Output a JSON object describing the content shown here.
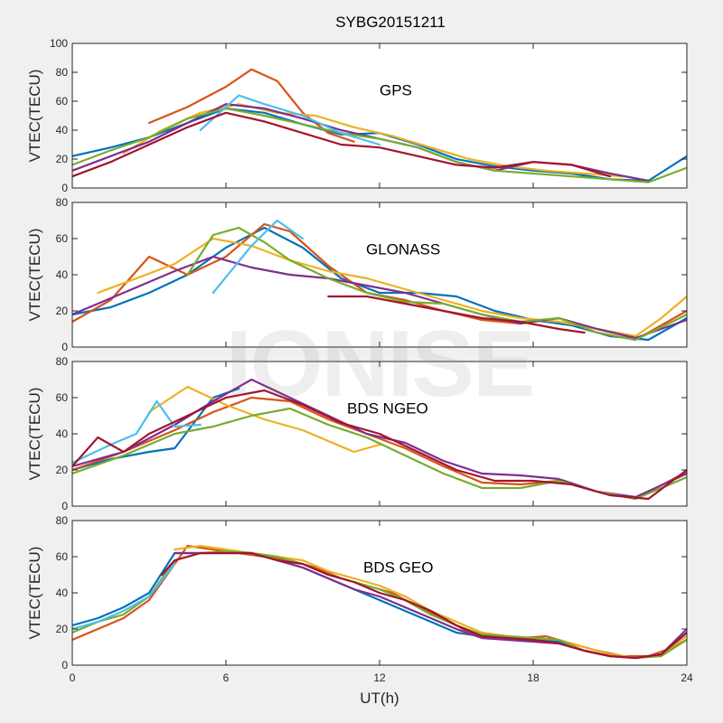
{
  "title": "SYBG20151211",
  "watermark": "IONISE",
  "colors": {
    "background": "#f0f0f0",
    "axes_face": "#ffffff",
    "series_palette": [
      "#0072BD",
      "#D95319",
      "#EDB120",
      "#7E2F8E",
      "#77AC30",
      "#4DBEEE",
      "#A2142F"
    ]
  },
  "chart_data": [
    {
      "type": "line",
      "annotation": "GPS",
      "ylabel": "VTEC(TECU)",
      "xlabel": "",
      "xlim": [
        0,
        24
      ],
      "ylim": [
        0,
        100
      ],
      "yticks": [
        0,
        20,
        40,
        60,
        80,
        100
      ],
      "xticks": [
        0,
        6,
        12,
        18,
        24
      ],
      "show_xtick_labels": false,
      "grid": false,
      "series": [
        {
          "color": "#0072BD",
          "x": [
            0,
            1.5,
            3,
            4.5,
            6,
            7.5,
            9,
            10.5,
            12,
            13.5,
            15,
            16.5,
            18,
            19.5,
            21,
            22.5,
            24
          ],
          "values": [
            22,
            28,
            35,
            45,
            55,
            52,
            44,
            37,
            38,
            30,
            20,
            15,
            12,
            10,
            6,
            5,
            22
          ]
        },
        {
          "color": "#D95319",
          "x": [
            3,
            4.5,
            6,
            7,
            8,
            9,
            10,
            11
          ],
          "values": [
            45,
            56,
            70,
            82,
            74,
            52,
            38,
            32
          ]
        },
        {
          "color": "#EDB120",
          "x": [
            2,
            3.5,
            5,
            6.5,
            8,
            9.5,
            11,
            12.5,
            14,
            15.5,
            17,
            18.5,
            20,
            21.5
          ],
          "values": [
            24,
            40,
            52,
            58,
            52,
            50,
            42,
            36,
            28,
            20,
            15,
            12,
            10,
            8
          ]
        },
        {
          "color": "#7E2F8E",
          "x": [
            0,
            1.5,
            3,
            4.5,
            6,
            7.5,
            9,
            10.5,
            12,
            13.5,
            15,
            16.5,
            18,
            19.5,
            21,
            22.5
          ],
          "values": [
            12,
            22,
            32,
            45,
            58,
            55,
            48,
            40,
            34,
            28,
            18,
            12,
            18,
            16,
            10,
            5
          ]
        },
        {
          "color": "#77AC30",
          "x": [
            0,
            1.5,
            3,
            4.5,
            6,
            7.5,
            9,
            10.5,
            12,
            13.5,
            15,
            16.5,
            18,
            19.5,
            21,
            22.5,
            24
          ],
          "values": [
            16,
            26,
            35,
            48,
            55,
            50,
            44,
            38,
            34,
            28,
            18,
            12,
            10,
            8,
            6,
            4,
            14
          ]
        },
        {
          "color": "#4DBEEE",
          "x": [
            5,
            6.5,
            7.5,
            9,
            10.5,
            12
          ],
          "values": [
            40,
            64,
            58,
            50,
            38,
            30
          ]
        },
        {
          "color": "#A2142F",
          "x": [
            0,
            1.5,
            3,
            4.5,
            6,
            7.5,
            9,
            10.5,
            12,
            13.5,
            15,
            16.5,
            18,
            19.5,
            21
          ],
          "values": [
            8,
            18,
            30,
            42,
            52,
            46,
            38,
            30,
            28,
            22,
            16,
            14,
            18,
            16,
            8
          ]
        }
      ]
    },
    {
      "type": "line",
      "annotation": "GLONASS",
      "ylabel": "VTEC(TECU)",
      "xlabel": "",
      "xlim": [
        0,
        24
      ],
      "ylim": [
        0,
        80
      ],
      "yticks": [
        0,
        20,
        40,
        60,
        80
      ],
      "xticks": [
        0,
        6,
        12,
        18,
        24
      ],
      "show_xtick_labels": false,
      "grid": false,
      "series": [
        {
          "color": "#0072BD",
          "x": [
            0,
            1.5,
            3,
            4.5,
            6,
            7.5,
            9,
            10.5,
            12,
            13.5,
            15,
            16.5,
            18,
            19.5,
            21,
            22.5,
            24
          ],
          "values": [
            18,
            22,
            30,
            40,
            55,
            66,
            55,
            38,
            30,
            30,
            28,
            20,
            15,
            12,
            6,
            4,
            16
          ]
        },
        {
          "color": "#D95319",
          "x": [
            0,
            1.5,
            3,
            4.5,
            6,
            7.5,
            8.5,
            10,
            11.5,
            13,
            14.5,
            16,
            17.5,
            19,
            20.5,
            22,
            24
          ],
          "values": [
            14,
            26,
            50,
            40,
            50,
            68,
            64,
            45,
            30,
            26,
            20,
            15,
            13,
            16,
            8,
            4,
            20
          ]
        },
        {
          "color": "#EDB120",
          "x": [
            1,
            2.5,
            4,
            5.5,
            7,
            8.5,
            10,
            11.5,
            13,
            14.5,
            16,
            17.5,
            19,
            20.5,
            22,
            23,
            24
          ],
          "values": [
            30,
            38,
            46,
            60,
            56,
            48,
            42,
            38,
            32,
            26,
            20,
            16,
            14,
            10,
            6,
            16,
            28
          ]
        },
        {
          "color": "#7E2F8E",
          "x": [
            0,
            2,
            4,
            5.5,
            7,
            8.5,
            10,
            11.5,
            13,
            14.5,
            16,
            17.5,
            19,
            20.5,
            22,
            24
          ],
          "values": [
            18,
            30,
            42,
            50,
            44,
            40,
            38,
            34,
            30,
            24,
            18,
            13,
            16,
            10,
            5,
            15
          ]
        },
        {
          "color": "#77AC30",
          "x": [
            4.5,
            5.5,
            6.5,
            7.5,
            8.5,
            10,
            11.5,
            13,
            14.5,
            16,
            17.5,
            19,
            20.5,
            22,
            24
          ],
          "values": [
            40,
            62,
            66,
            58,
            48,
            38,
            30,
            25,
            24,
            18,
            14,
            16,
            8,
            4,
            18
          ]
        },
        {
          "color": "#4DBEEE",
          "x": [
            5.5,
            7,
            8,
            9
          ],
          "values": [
            30,
            56,
            70,
            60
          ]
        },
        {
          "color": "#A2142F",
          "x": [
            10,
            11.5,
            13,
            14.5,
            16,
            17.5,
            19,
            20
          ],
          "values": [
            28,
            28,
            24,
            20,
            16,
            14,
            10,
            8
          ]
        }
      ]
    },
    {
      "type": "line",
      "annotation": "BDS NGEO",
      "ylabel": "VTEC(TECU)",
      "xlabel": "",
      "xlim": [
        0,
        24
      ],
      "ylim": [
        0,
        80
      ],
      "yticks": [
        0,
        20,
        40,
        60,
        80
      ],
      "xticks": [
        0,
        6,
        12,
        18,
        24
      ],
      "show_xtick_labels": false,
      "grid": false,
      "series": [
        {
          "color": "#0072BD",
          "x": [
            0,
            1.5,
            3,
            4,
            5.5,
            6.5
          ],
          "values": [
            20,
            26,
            30,
            32,
            60,
            65
          ]
        },
        {
          "color": "#D95319",
          "x": [
            0,
            2,
            4,
            5.5,
            7,
            8.5,
            10,
            11.5,
            13,
            14.5,
            16,
            17.5,
            19,
            20.5,
            22,
            24
          ],
          "values": [
            20,
            30,
            42,
            52,
            60,
            58,
            48,
            40,
            32,
            22,
            13,
            12,
            14,
            8,
            4,
            19
          ]
        },
        {
          "color": "#EDB120",
          "x": [
            3,
            4.5,
            6,
            7.5,
            9,
            11,
            12
          ],
          "values": [
            52,
            66,
            56,
            48,
            42,
            30,
            34
          ]
        },
        {
          "color": "#7E2F8E",
          "x": [
            0,
            2,
            4,
            5.5,
            7,
            8.5,
            10,
            11.5,
            13,
            14.5,
            16,
            17.5,
            19,
            20.5,
            22,
            24
          ],
          "values": [
            22,
            30,
            45,
            58,
            70,
            60,
            50,
            40,
            35,
            25,
            18,
            17,
            15,
            8,
            5,
            18
          ]
        },
        {
          "color": "#77AC30",
          "x": [
            0,
            2,
            4,
            5.5,
            7,
            8.5,
            10,
            11.5,
            13,
            14.5,
            16,
            17.5,
            19,
            20.5,
            22,
            24
          ],
          "values": [
            18,
            28,
            40,
            44,
            50,
            54,
            45,
            38,
            28,
            18,
            10,
            10,
            14,
            8,
            4,
            16
          ]
        },
        {
          "color": "#4DBEEE",
          "x": [
            0,
            1.5,
            2.5,
            3.3,
            4,
            5
          ],
          "values": [
            24,
            34,
            40,
            58,
            44,
            45
          ]
        },
        {
          "color": "#A2142F",
          "x": [
            0,
            1,
            2,
            3,
            4.5,
            6,
            7.5,
            9,
            10.5,
            12,
            13.5,
            15,
            16.5,
            18,
            19.5,
            21,
            22.5,
            24
          ],
          "values": [
            22,
            38,
            30,
            40,
            50,
            60,
            64,
            56,
            46,
            40,
            30,
            20,
            14,
            14,
            12,
            6,
            4,
            20
          ]
        }
      ]
    },
    {
      "type": "line",
      "annotation": "BDS GEO",
      "ylabel": "VTEC(TECU)",
      "xlabel": "UT(h)",
      "xlim": [
        0,
        24
      ],
      "ylim": [
        0,
        80
      ],
      "yticks": [
        0,
        20,
        40,
        60,
        80
      ],
      "xticks": [
        0,
        6,
        12,
        18,
        24
      ],
      "show_xtick_labels": true,
      "grid": false,
      "series": [
        {
          "color": "#0072BD",
          "x": [
            0,
            1,
            2,
            3,
            4,
            5,
            6,
            7,
            8,
            9,
            10,
            11,
            12,
            13,
            14,
            15,
            16,
            17,
            18,
            19,
            20,
            21,
            22,
            23,
            24
          ],
          "values": [
            22,
            26,
            32,
            40,
            62,
            62,
            62,
            62,
            58,
            54,
            48,
            42,
            36,
            30,
            24,
            18,
            16,
            15,
            14,
            13,
            8,
            5,
            4,
            6,
            18
          ]
        },
        {
          "color": "#D95319",
          "x": [
            0,
            1,
            2,
            3,
            3.8,
            4.5,
            5.5,
            6.5,
            7.5,
            8.5,
            9.5,
            10.5,
            11.5,
            12.5,
            13.5,
            14.5,
            15.5,
            16.5,
            17.5,
            18.5,
            19.5,
            20.5,
            21.5,
            22.5,
            23.5,
            24
          ],
          "values": [
            14,
            20,
            26,
            36,
            52,
            66,
            64,
            62,
            60,
            58,
            54,
            48,
            44,
            40,
            32,
            26,
            18,
            16,
            15,
            16,
            12,
            8,
            5,
            5,
            10,
            14
          ]
        },
        {
          "color": "#EDB120",
          "x": [
            4,
            5,
            6,
            7,
            8,
            9,
            10,
            11,
            12,
            13,
            14,
            15,
            16,
            17,
            18,
            19,
            20,
            21,
            22,
            23,
            24
          ],
          "values": [
            64,
            66,
            64,
            62,
            60,
            58,
            52,
            48,
            44,
            38,
            30,
            24,
            18,
            16,
            15,
            14,
            10,
            6,
            4,
            6,
            16
          ]
        },
        {
          "color": "#7E2F8E",
          "x": [
            4,
            5,
            6,
            7,
            8,
            9,
            10,
            11,
            12,
            13,
            14,
            15,
            16,
            17,
            18,
            19,
            20,
            21,
            22,
            23,
            24
          ],
          "values": [
            62,
            62,
            62,
            62,
            58,
            54,
            48,
            42,
            38,
            32,
            26,
            20,
            15,
            14,
            13,
            12,
            8,
            5,
            4,
            6,
            20
          ]
        },
        {
          "color": "#77AC30",
          "x": [
            0,
            1,
            2,
            3,
            4,
            5,
            6,
            7,
            8,
            9,
            10,
            11,
            12,
            13,
            14,
            15,
            16,
            17,
            18,
            19,
            20,
            21,
            22,
            23,
            24
          ],
          "values": [
            18,
            24,
            28,
            38,
            58,
            62,
            63,
            62,
            60,
            56,
            50,
            46,
            42,
            36,
            28,
            22,
            17,
            16,
            15,
            14,
            8,
            5,
            4,
            5,
            14
          ]
        },
        {
          "color": "#4DBEEE",
          "x": [
            0,
            1,
            2,
            3,
            4
          ],
          "values": [
            20,
            24,
            30,
            38,
            56
          ]
        },
        {
          "color": "#A2142F",
          "x": [
            3.5,
            4,
            5,
            6,
            7,
            8,
            9,
            10,
            11,
            12,
            13,
            14,
            15,
            16,
            17,
            18,
            19,
            20,
            21,
            22,
            23,
            24
          ],
          "values": [
            50,
            58,
            62,
            62,
            62,
            58,
            56,
            50,
            46,
            40,
            36,
            30,
            22,
            16,
            15,
            14,
            12,
            8,
            5,
            4,
            6,
            18
          ]
        }
      ]
    }
  ]
}
